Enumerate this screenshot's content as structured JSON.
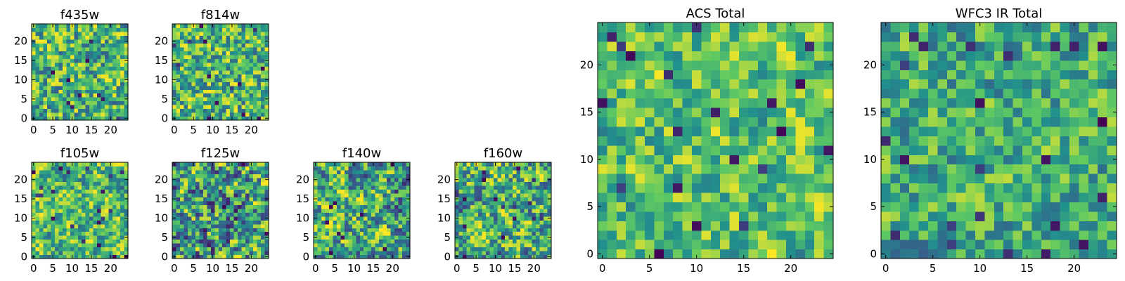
{
  "figure": {
    "colormap": [
      "#440154",
      "#3b528b",
      "#21918c",
      "#5ec962",
      "#fde725"
    ]
  },
  "chart_data": [
    {
      "type": "heatmap",
      "title": "f435w",
      "grid": [
        25,
        25
      ],
      "xlim": [
        0,
        24
      ],
      "ylim": [
        0,
        24
      ],
      "xticks": [
        "0",
        "5",
        "10",
        "15",
        "20"
      ],
      "yticks": [
        "0",
        "5",
        "10",
        "15",
        "20"
      ],
      "seed": 11,
      "mean": 0.66,
      "spread": 0.2,
      "smooth": 0.15
    },
    {
      "type": "heatmap",
      "title": "f814w",
      "grid": [
        25,
        25
      ],
      "xlim": [
        0,
        24
      ],
      "ylim": [
        0,
        24
      ],
      "xticks": [
        "0",
        "5",
        "10",
        "15",
        "20"
      ],
      "yticks": [
        "0",
        "5",
        "10",
        "15",
        "20"
      ],
      "seed": 23,
      "mean": 0.66,
      "spread": 0.2,
      "smooth": 0.15
    },
    {
      "type": "heatmap",
      "title": "f105w",
      "grid": [
        25,
        25
      ],
      "xlim": [
        0,
        24
      ],
      "ylim": [
        0,
        24
      ],
      "xticks": [
        "0",
        "5",
        "10",
        "15",
        "20"
      ],
      "yticks": [
        "0",
        "5",
        "10",
        "15",
        "20"
      ],
      "seed": 37,
      "mean": 0.68,
      "spread": 0.18,
      "smooth": 0.45
    },
    {
      "type": "heatmap",
      "title": "f125w",
      "grid": [
        25,
        25
      ],
      "xlim": [
        0,
        24
      ],
      "ylim": [
        0,
        24
      ],
      "xticks": [
        "0",
        "5",
        "10",
        "15",
        "20"
      ],
      "yticks": [
        "0",
        "5",
        "10",
        "15",
        "20"
      ],
      "seed": 41,
      "mean": 0.55,
      "spread": 0.24,
      "smooth": 0.45
    },
    {
      "type": "heatmap",
      "title": "f140w",
      "grid": [
        25,
        25
      ],
      "xlim": [
        0,
        24
      ],
      "ylim": [
        0,
        24
      ],
      "xticks": [
        "0",
        "5",
        "10",
        "15",
        "20"
      ],
      "yticks": [
        "0",
        "5",
        "10",
        "15",
        "20"
      ],
      "seed": 53,
      "mean": 0.6,
      "spread": 0.23,
      "smooth": 0.45
    },
    {
      "type": "heatmap",
      "title": "f160w",
      "grid": [
        25,
        25
      ],
      "xlim": [
        0,
        24
      ],
      "ylim": [
        0,
        24
      ],
      "xticks": [
        "0",
        "5",
        "10",
        "15",
        "20"
      ],
      "yticks": [
        "0",
        "5",
        "10",
        "15",
        "20"
      ],
      "seed": 67,
      "mean": 0.62,
      "spread": 0.22,
      "smooth": 0.45
    },
    {
      "type": "heatmap",
      "title": "ACS Total",
      "grid": [
        25,
        25
      ],
      "xlim": [
        0,
        24
      ],
      "ylim": [
        0,
        24
      ],
      "xticks": [
        "0",
        "5",
        "10",
        "15",
        "20"
      ],
      "yticks": [
        "0",
        "5",
        "10",
        "15",
        "20"
      ],
      "seed": 79,
      "mean": 0.7,
      "spread": 0.15,
      "smooth": 0.3
    },
    {
      "type": "heatmap",
      "title": "WFC3 IR Total",
      "grid": [
        25,
        25
      ],
      "xlim": [
        0,
        24
      ],
      "ylim": [
        0,
        24
      ],
      "xticks": [
        "0",
        "5",
        "10",
        "15",
        "20"
      ],
      "yticks": [
        "0",
        "5",
        "10",
        "15",
        "20"
      ],
      "seed": 97,
      "mean": 0.62,
      "spread": 0.16,
      "smooth": 0.3
    }
  ]
}
